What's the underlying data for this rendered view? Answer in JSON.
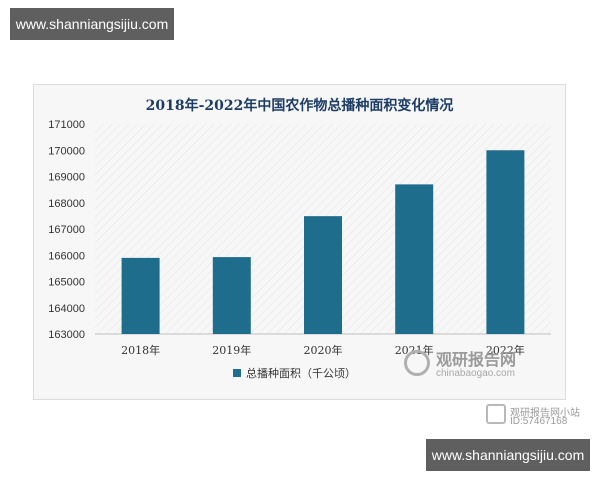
{
  "watermark": {
    "top": "www.shanniangsijiu.com",
    "bottom": "www.shanniangsijiu.com"
  },
  "brand": {
    "name": "观研报告网",
    "url": "chinabaogao.com",
    "wechat_name": "观研报告网小站",
    "wechat_id": "ID:57467168"
  },
  "chart_data": {
    "type": "bar",
    "title": "2018年-2022年中国农作物总播种面积变化情况",
    "categories": [
      "2018年",
      "2019年",
      "2020年",
      "2021年",
      "2022年"
    ],
    "series": [
      {
        "name": "总播种面积（千公顷）",
        "values": [
          165900,
          165930,
          167490,
          168700,
          170000
        ],
        "color": "#1f6d8c"
      }
    ],
    "y_ticks": [
      "163000",
      "164000",
      "165000",
      "166000",
      "167000",
      "168000",
      "169000",
      "170000",
      "171000"
    ],
    "ylim": [
      163000,
      171000
    ],
    "xlabel": "",
    "ylabel": "",
    "legend_position": "bottom",
    "grid": false
  }
}
